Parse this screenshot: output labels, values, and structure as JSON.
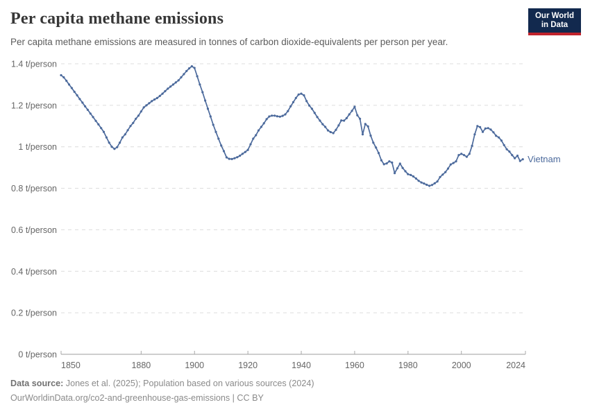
{
  "header": {
    "title": "Per capita methane emissions",
    "subtitle": "Per capita methane emissions are measured in tonnes of carbon dioxide-equivalents per person per year."
  },
  "logo": {
    "line1": "Our World",
    "line2": "in Data",
    "bg_color": "#12294E",
    "accent_color": "#C0232C"
  },
  "footer": {
    "source_label": "Data source:",
    "source_text": "Jones et al. (2025); Population based on various sources (2024)",
    "license_line": "OurWorldinData.org/co2-and-greenhouse-gas-emissions | CC BY"
  },
  "chart_data": {
    "type": "line",
    "title": "Per capita methane emissions",
    "xlabel": "",
    "ylabel": "",
    "xlim": [
      1850,
      2024
    ],
    "ylim": [
      0,
      1.4
    ],
    "grid": "dashed-horizontal",
    "legend_position": "end-of-line",
    "x_ticks": [
      {
        "value": 1850,
        "label": "1850"
      },
      {
        "value": 1880,
        "label": "1880"
      },
      {
        "value": 1900,
        "label": "1900"
      },
      {
        "value": 1920,
        "label": "1920"
      },
      {
        "value": 1940,
        "label": "1940"
      },
      {
        "value": 1960,
        "label": "1960"
      },
      {
        "value": 1980,
        "label": "1980"
      },
      {
        "value": 2000,
        "label": "2000"
      },
      {
        "value": 2024,
        "label": "2024"
      }
    ],
    "y_ticks": [
      {
        "value": 0,
        "label": "0 t/person"
      },
      {
        "value": 0.2,
        "label": "0.2 t/person"
      },
      {
        "value": 0.4,
        "label": "0.4 t/person"
      },
      {
        "value": 0.6,
        "label": "0.6 t/person"
      },
      {
        "value": 0.8,
        "label": "0.8 t/person"
      },
      {
        "value": 1,
        "label": "1 t/person"
      },
      {
        "value": 1.2,
        "label": "1.2 t/person"
      },
      {
        "value": 1.4,
        "label": "1.4 t/person"
      }
    ],
    "series": [
      {
        "name": "Vietnam",
        "color": "#4C6A9C",
        "start_year": 1850,
        "values": [
          1.345,
          1.335,
          1.318,
          1.3,
          1.283,
          1.265,
          1.248,
          1.23,
          1.213,
          1.195,
          1.178,
          1.16,
          1.143,
          1.125,
          1.108,
          1.09,
          1.072,
          1.045,
          1.02,
          1.0,
          0.99,
          0.998,
          1.02,
          1.045,
          1.06,
          1.08,
          1.1,
          1.115,
          1.135,
          1.15,
          1.17,
          1.19,
          1.2,
          1.21,
          1.22,
          1.228,
          1.235,
          1.245,
          1.256,
          1.268,
          1.28,
          1.29,
          1.3,
          1.31,
          1.32,
          1.335,
          1.35,
          1.365,
          1.378,
          1.388,
          1.38,
          1.34,
          1.3,
          1.263,
          1.223,
          1.183,
          1.146,
          1.106,
          1.072,
          1.039,
          1.006,
          0.979,
          0.949,
          0.942,
          0.941,
          0.945,
          0.95,
          0.957,
          0.966,
          0.975,
          0.985,
          1.012,
          1.039,
          1.056,
          1.079,
          1.096,
          1.113,
          1.133,
          1.146,
          1.15,
          1.15,
          1.147,
          1.145,
          1.149,
          1.156,
          1.172,
          1.195,
          1.215,
          1.235,
          1.252,
          1.256,
          1.248,
          1.22,
          1.199,
          1.183,
          1.163,
          1.143,
          1.126,
          1.109,
          1.096,
          1.079,
          1.071,
          1.066,
          1.082,
          1.103,
          1.127,
          1.126,
          1.138,
          1.156,
          1.173,
          1.193,
          1.152,
          1.135,
          1.06,
          1.11,
          1.098,
          1.054,
          1.02,
          0.996,
          0.97,
          0.935,
          0.916,
          0.92,
          0.93,
          0.924,
          0.873,
          0.896,
          0.919,
          0.898,
          0.882,
          0.868,
          0.864,
          0.857,
          0.847,
          0.836,
          0.828,
          0.823,
          0.817,
          0.812,
          0.816,
          0.824,
          0.833,
          0.854,
          0.866,
          0.878,
          0.895,
          0.915,
          0.922,
          0.93,
          0.96,
          0.966,
          0.96,
          0.952,
          0.966,
          1.005,
          1.06,
          1.1,
          1.095,
          1.072,
          1.088,
          1.09,
          1.083,
          1.07,
          1.053,
          1.045,
          1.03,
          1.008,
          0.988,
          0.977,
          0.96,
          0.945,
          0.957,
          0.932,
          0.94
        ]
      }
    ]
  }
}
